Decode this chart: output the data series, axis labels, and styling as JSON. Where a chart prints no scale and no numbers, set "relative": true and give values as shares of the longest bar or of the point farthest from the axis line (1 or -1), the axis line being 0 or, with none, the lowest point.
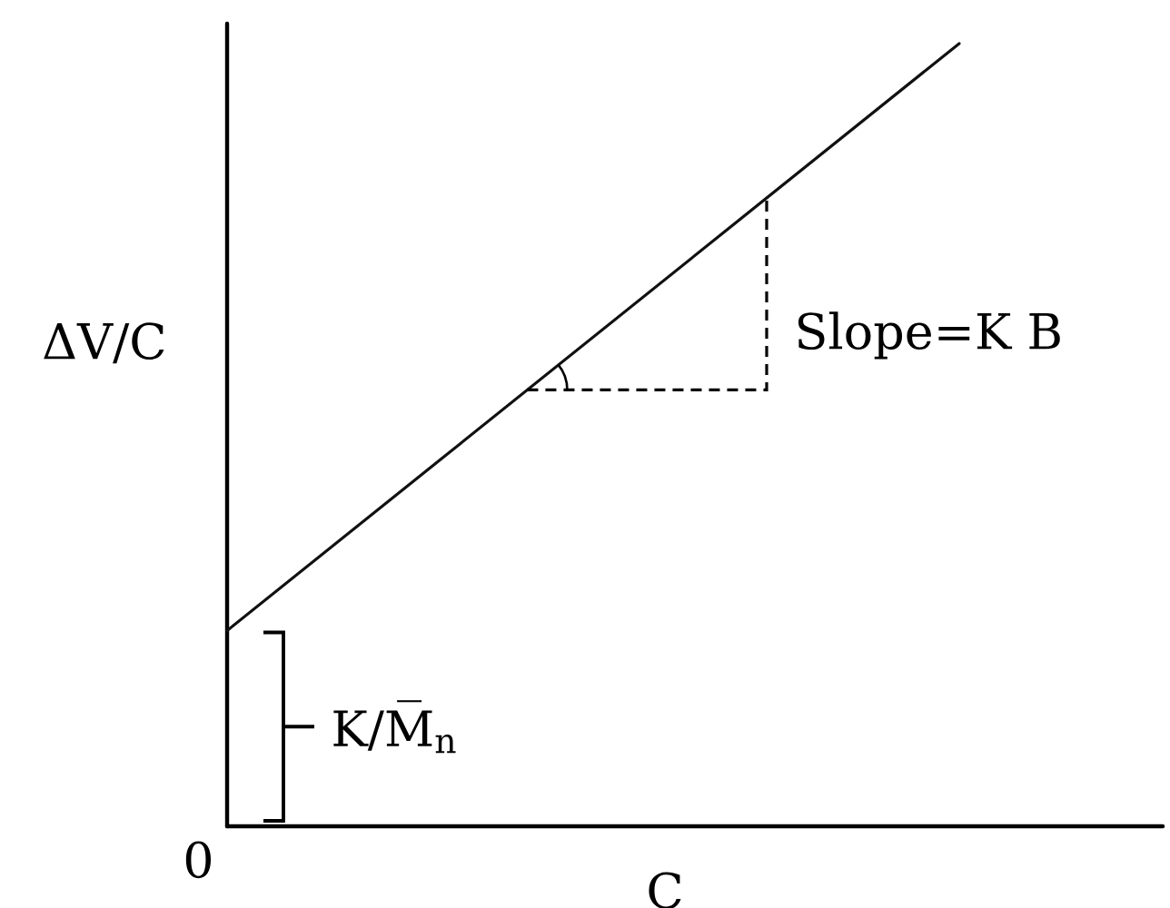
{
  "chart_data": {
    "type": "line",
    "relative": true,
    "categories": [
      null,
      null
    ],
    "values": [
      0.25,
      1
    ],
    "color": "#111111",
    "xlabel": "C",
    "ylabel": "ΔV/C",
    "annotations": [
      "Slope=K B",
      "K/M̅$_{n}$",
      "0"
    ],
    "marker": "none",
    "line_style": "solid"
  }
}
